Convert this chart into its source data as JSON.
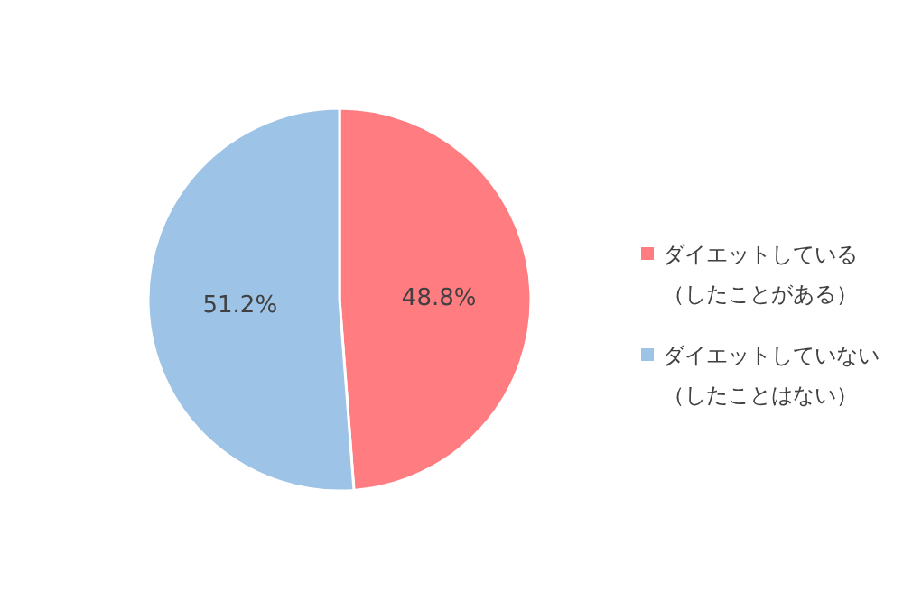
{
  "chart_data": {
    "type": "pie",
    "categories": [
      "ダイエットしている（したことがある）",
      "ダイエットしていない（したことはない）"
    ],
    "values": [
      48.8,
      51.2
    ],
    "colors": [
      "#ff7c80",
      "#9dc3e6"
    ],
    "value_labels": [
      "48.8%",
      "51.2%"
    ],
    "legend": "right"
  }
}
